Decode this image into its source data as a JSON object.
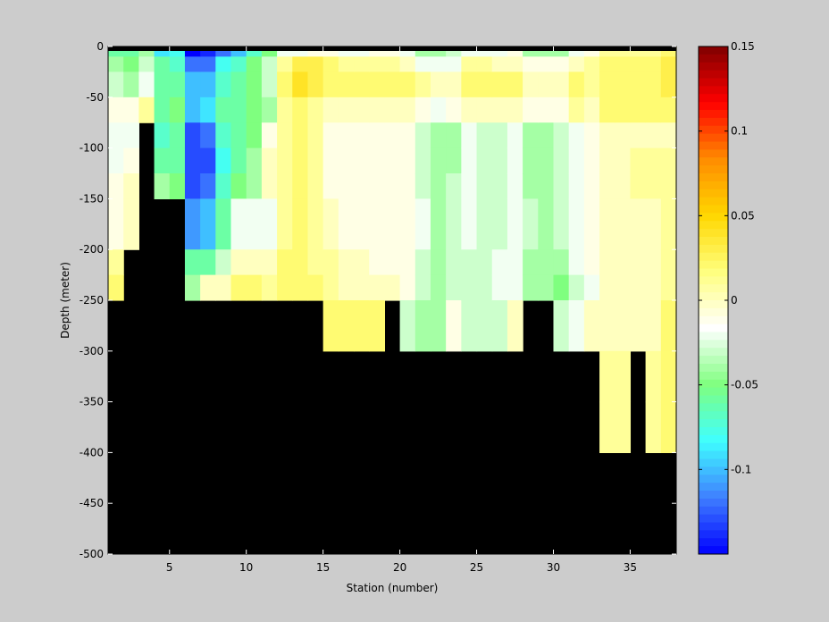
{
  "chart_data": {
    "type": "heatmap",
    "title": "",
    "xlabel": "Station (number)",
    "ylabel": "Depth (meter)",
    "xlim": [
      1,
      38
    ],
    "ylim": [
      -500,
      0
    ],
    "x_ticks": [
      5,
      10,
      15,
      20,
      25,
      30,
      35
    ],
    "y_ticks": [
      0,
      -50,
      -100,
      -150,
      -200,
      -250,
      -300,
      -350,
      -400,
      -450,
      -500
    ],
    "colorbar": {
      "range": [
        -0.15,
        0.15
      ],
      "ticks": [
        "0.15",
        "0.1",
        "0.05",
        "0",
        "-0.05",
        "-0.1"
      ],
      "tick_values": [
        0.15,
        0.1,
        0.05,
        0,
        -0.05,
        -0.1
      ],
      "colormap": [
        "#0000ff",
        "#3f7fff",
        "#3fffff",
        "#7fff7f",
        "#ffffff",
        "#ffff7f",
        "#ffd700",
        "#ff8c00",
        "#ff0000",
        "#7f0000"
      ]
    },
    "mask_color": "#000000",
    "stations": [
      1,
      2,
      3,
      4,
      5,
      6,
      7,
      8,
      9,
      10,
      11,
      12,
      13,
      14,
      15,
      16,
      17,
      18,
      19,
      20,
      21,
      22,
      23,
      24,
      25,
      26,
      27,
      28,
      29,
      30,
      31,
      32,
      33,
      34,
      35,
      36,
      37
    ],
    "bottom_depth": [
      -250,
      -200,
      -75,
      -150,
      -150,
      -250,
      -250,
      -250,
      -250,
      -250,
      -250,
      -250,
      -250,
      -250,
      -300,
      -300,
      -300,
      -300,
      -250,
      -300,
      -300,
      -300,
      -300,
      -300,
      -300,
      -300,
      -300,
      -250,
      -250,
      -300,
      -300,
      -300,
      -400,
      -400,
      -300,
      -400,
      -500
    ],
    "depth_levels": [
      0,
      -10,
      -25,
      -50,
      -75,
      -100,
      -125,
      -150,
      -200,
      -225,
      -250,
      -300,
      -350,
      -400
    ],
    "values": [
      [
        -0.06,
        -0.06,
        -0.04,
        -0.09,
        -0.08,
        -0.15,
        -0.14,
        -0.12,
        -0.1,
        -0.07,
        -0.05,
        -0.02,
        -0.02,
        -0.01,
        -0.01,
        -0.02,
        -0.02,
        -0.01,
        -0.01,
        -0.02,
        -0.04,
        -0.04,
        -0.03,
        -0.02,
        -0.02,
        -0.02,
        -0.01,
        -0.04,
        -0.04,
        -0.04,
        -0.02,
        -0.01,
        0.01,
        0.01,
        0.01,
        0.01,
        0.02
      ],
      [
        -0.04,
        -0.05,
        -0.03,
        -0.06,
        -0.07,
        -0.12,
        -0.12,
        -0.08,
        -0.07,
        -0.05,
        -0.03,
        0.01,
        0.03,
        0.03,
        0.02,
        0.01,
        0.01,
        0.01,
        0.01,
        0.0,
        -0.02,
        -0.02,
        -0.02,
        0.01,
        0.01,
        0.0,
        0.0,
        -0.01,
        -0.01,
        -0.01,
        0.0,
        0.01,
        0.02,
        0.02,
        0.02,
        0.02,
        0.03
      ],
      [
        -0.03,
        -0.04,
        -0.02,
        -0.06,
        -0.06,
        -0.1,
        -0.1,
        -0.07,
        -0.06,
        -0.05,
        -0.03,
        0.02,
        0.04,
        0.03,
        0.02,
        0.02,
        0.02,
        0.02,
        0.02,
        0.02,
        0.01,
        0.0,
        0.0,
        0.02,
        0.02,
        0.02,
        0.02,
        0.0,
        0.0,
        0.0,
        0.02,
        0.01,
        0.02,
        0.02,
        0.02,
        0.02,
        0.03
      ],
      [
        -0.01,
        -0.01,
        0.01,
        -0.06,
        -0.05,
        -0.1,
        -0.09,
        -0.06,
        -0.06,
        -0.05,
        -0.04,
        0.01,
        0.02,
        0.01,
        0.0,
        0.0,
        0.0,
        0.0,
        0.0,
        0.0,
        -0.01,
        -0.02,
        -0.01,
        0.0,
        0.0,
        0.0,
        0.0,
        -0.01,
        -0.01,
        -0.01,
        0.01,
        0.0,
        0.02,
        0.02,
        0.02,
        0.02,
        0.02
      ],
      [
        -0.02,
        -0.02,
        0,
        -0.07,
        -0.06,
        -0.13,
        -0.12,
        -0.07,
        -0.06,
        -0.05,
        -0.01,
        0.01,
        0.02,
        0.01,
        -0.01,
        -0.01,
        -0.01,
        -0.01,
        -0.01,
        -0.01,
        -0.03,
        -0.04,
        -0.04,
        -0.02,
        -0.03,
        -0.03,
        -0.02,
        -0.04,
        -0.04,
        -0.03,
        -0.02,
        -0.01,
        0.0,
        0.0,
        0.0,
        0.0,
        0.0
      ],
      [
        -0.02,
        -0.01,
        0,
        -0.06,
        -0.06,
        -0.13,
        -0.13,
        -0.08,
        -0.06,
        -0.04,
        0.0,
        0.01,
        0.02,
        0.01,
        -0.01,
        -0.01,
        -0.01,
        -0.01,
        -0.01,
        -0.01,
        -0.03,
        -0.04,
        -0.04,
        -0.02,
        -0.03,
        -0.03,
        -0.02,
        -0.04,
        -0.04,
        -0.03,
        -0.02,
        -0.01,
        0.0,
        0.0,
        0.01,
        0.01,
        0.01
      ],
      [
        -0.01,
        0.0,
        0,
        -0.04,
        -0.05,
        -0.13,
        -0.12,
        -0.07,
        -0.05,
        -0.04,
        0.0,
        0.01,
        0.02,
        0.01,
        -0.01,
        -0.01,
        -0.01,
        -0.01,
        -0.01,
        -0.01,
        -0.03,
        -0.04,
        -0.03,
        -0.02,
        -0.03,
        -0.03,
        -0.02,
        -0.04,
        -0.04,
        -0.03,
        -0.02,
        -0.01,
        0.0,
        0.0,
        0.01,
        0.01,
        0.01
      ],
      [
        -0.01,
        0.0,
        0,
        -0.05,
        -0.05,
        -0.11,
        -0.1,
        -0.06,
        -0.02,
        -0.02,
        -0.02,
        0.01,
        0.02,
        0.01,
        0.0,
        -0.01,
        -0.01,
        -0.01,
        -0.01,
        -0.01,
        -0.02,
        -0.04,
        -0.03,
        -0.02,
        -0.03,
        -0.03,
        -0.02,
        -0.03,
        -0.04,
        -0.03,
        -0.02,
        -0.01,
        0.0,
        0.0,
        0.0,
        0.0,
        0.01
      ],
      [
        0.01,
        0.01,
        0,
        0,
        0,
        -0.06,
        -0.06,
        -0.03,
        0.0,
        0.0,
        0.0,
        0.02,
        0.02,
        0.01,
        0.01,
        0.0,
        0.0,
        -0.01,
        -0.01,
        -0.01,
        -0.03,
        -0.04,
        -0.03,
        -0.03,
        -0.03,
        -0.02,
        -0.02,
        -0.04,
        -0.04,
        -0.04,
        -0.02,
        -0.01,
        0.0,
        0.0,
        0.0,
        0.0,
        0.01
      ],
      [
        0.02,
        0,
        0,
        0,
        0,
        -0.04,
        0.0,
        0.0,
        0.02,
        0.02,
        0.01,
        0.02,
        0.02,
        0.02,
        0.01,
        0.0,
        0.0,
        0.0,
        0.0,
        -0.01,
        -0.03,
        -0.04,
        -0.03,
        -0.03,
        -0.03,
        -0.02,
        -0.02,
        -0.04,
        -0.04,
        -0.05,
        -0.03,
        -0.02,
        0.0,
        0.0,
        0.0,
        0.0,
        0.01
      ],
      [
        0,
        0,
        0,
        0,
        0,
        0,
        0,
        0,
        0,
        0,
        0,
        0,
        0,
        0,
        0.02,
        0.02,
        0.02,
        0.02,
        0,
        -0.03,
        -0.04,
        -0.04,
        -0.01,
        -0.03,
        -0.03,
        -0.03,
        0,
        0,
        0,
        -0.03,
        -0.02,
        0.0,
        0.0,
        0.0,
        0.0,
        0.0,
        0.02
      ],
      [
        0,
        0,
        0,
        0,
        0,
        0,
        0,
        0,
        0,
        0,
        0,
        0,
        0,
        0,
        0,
        0,
        0,
        0,
        0,
        0,
        0,
        0,
        0,
        0,
        0,
        0,
        0,
        0,
        0,
        0,
        0,
        0,
        0.01,
        0.01,
        0,
        0.01,
        0.02
      ],
      [
        0,
        0,
        0,
        0,
        0,
        0,
        0,
        0,
        0,
        0,
        0,
        0,
        0,
        0,
        0,
        0,
        0,
        0,
        0,
        0,
        0,
        0,
        0,
        0,
        0,
        0,
        0,
        0,
        0,
        0,
        0,
        0,
        0.01,
        0.01,
        0,
        0.01,
        0.02
      ],
      [
        0,
        0,
        0,
        0,
        0,
        0,
        0,
        0,
        0,
        0,
        0,
        0,
        0,
        0,
        0,
        0,
        0,
        0,
        0,
        0,
        0,
        0,
        0,
        0,
        0,
        0,
        0,
        0,
        0,
        0,
        0,
        0,
        0,
        0,
        0,
        0,
        0
      ]
    ]
  }
}
